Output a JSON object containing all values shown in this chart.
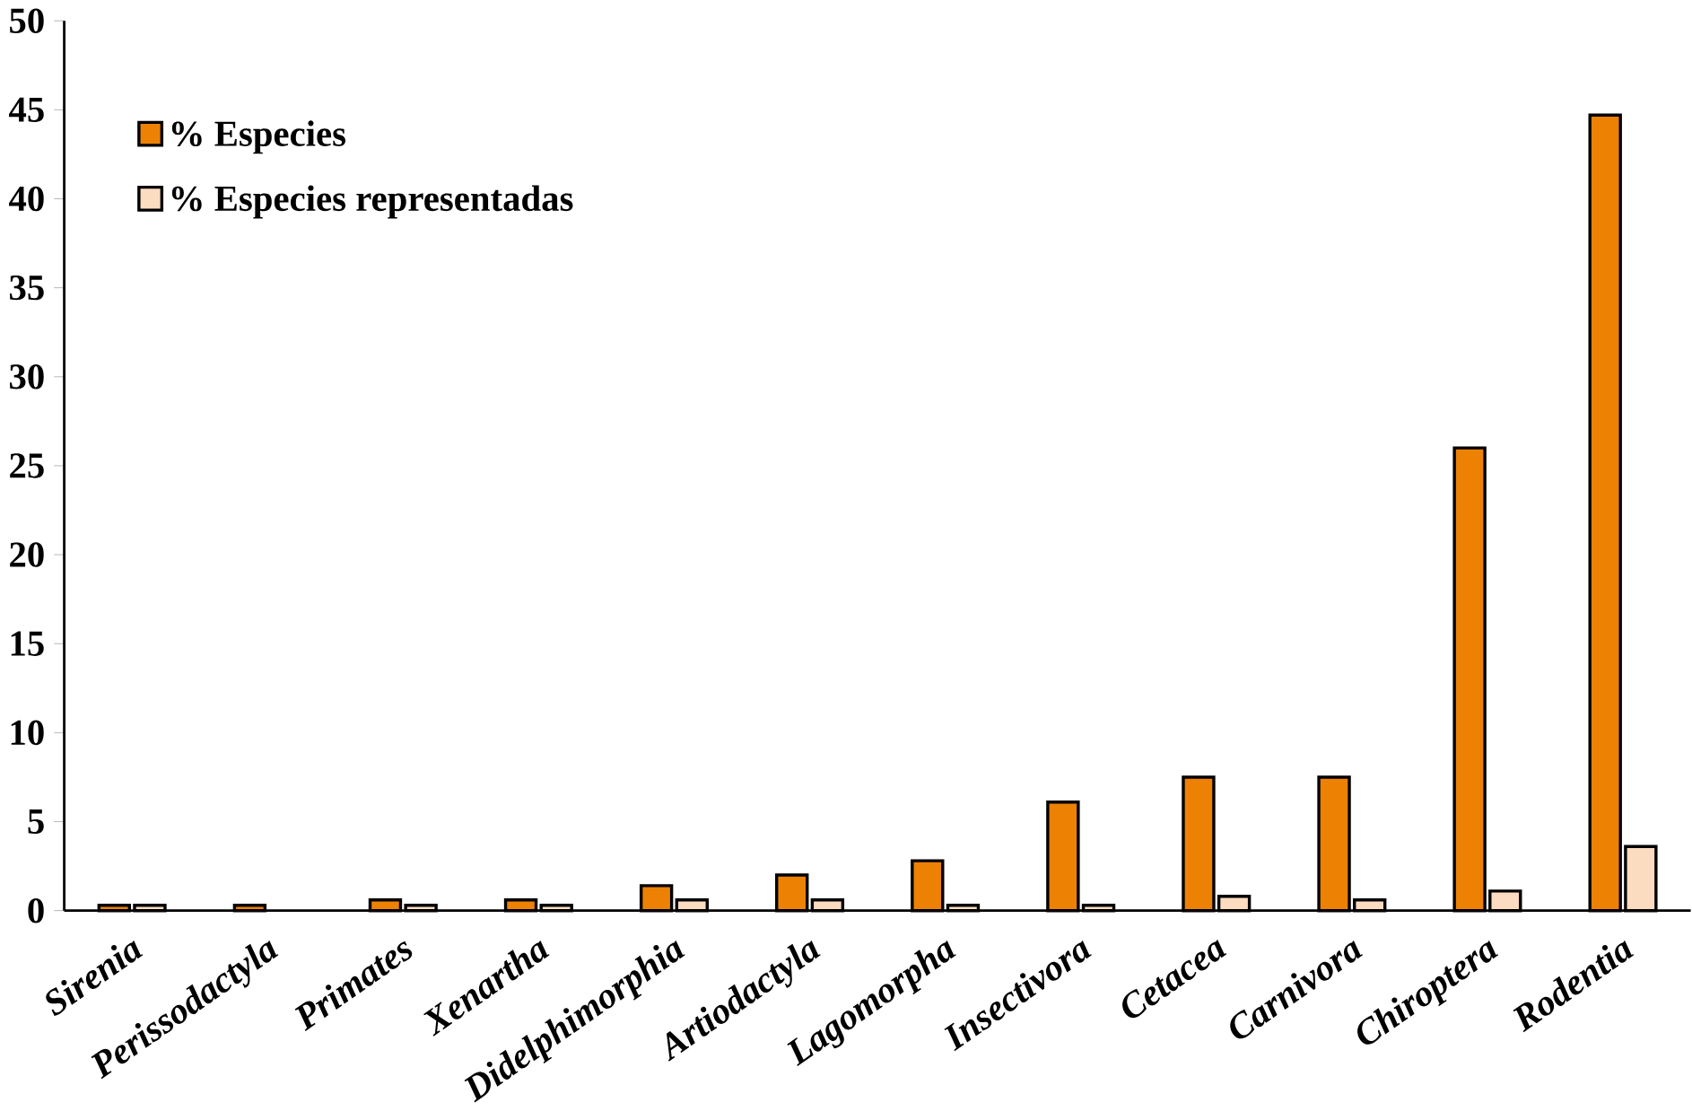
{
  "chart_data": {
    "type": "bar",
    "categories": [
      "Sirenia",
      "Perissodactyla",
      "Primates",
      "Xenartha",
      "Didelphimorphia",
      "Artiodactyla",
      "Lagomorpha",
      "Insectivora",
      "Cetacea",
      "Carnivora",
      "Chiroptera",
      "Rodentia"
    ],
    "series": [
      {
        "name": "% Especies",
        "color": "#ec8104",
        "values": [
          0.3,
          0.3,
          0.6,
          0.6,
          1.4,
          2.0,
          2.8,
          6.1,
          7.5,
          7.5,
          26.0,
          44.7
        ]
      },
      {
        "name": "% Especies representadas",
        "color": "#fcdcc0",
        "values": [
          0.3,
          null,
          0.3,
          0.3,
          0.6,
          0.6,
          0.3,
          0.3,
          0.8,
          0.6,
          1.1,
          3.6
        ]
      }
    ],
    "ylim": [
      0,
      50
    ],
    "yticks": [
      0,
      5,
      10,
      15,
      20,
      25,
      30,
      35,
      40,
      45,
      50
    ],
    "grid": false,
    "legend": "top left"
  }
}
